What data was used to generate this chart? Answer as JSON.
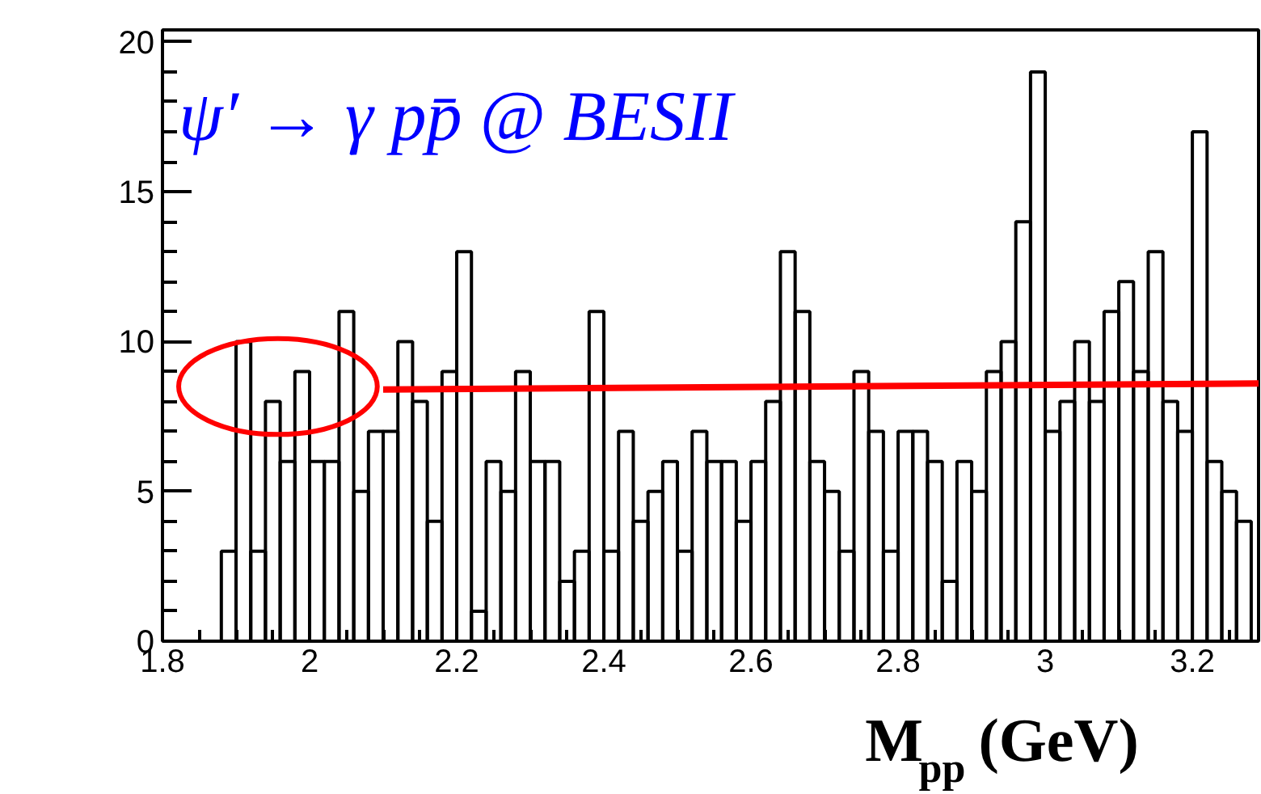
{
  "chart_data": {
    "type": "histogram",
    "title": "ψ′ → γ pp̄ @ BESII",
    "xlabel": "M$_{pp}$ (GeV)",
    "bins": [
      1.88,
      1.9,
      1.92,
      1.94,
      1.96,
      1.98,
      2.0,
      2.02,
      2.04,
      2.06,
      2.08,
      2.1,
      2.12,
      2.14,
      2.16,
      2.18,
      2.2,
      2.22,
      2.24,
      2.26,
      2.28,
      2.3,
      2.32,
      2.34,
      2.36,
      2.38,
      2.4,
      2.42,
      2.44,
      2.46,
      2.48,
      2.5,
      2.52,
      2.54,
      2.56,
      2.58,
      2.6,
      2.62,
      2.64,
      2.66,
      2.68,
      2.7,
      2.72,
      2.74,
      2.76,
      2.78,
      2.8,
      2.82,
      2.84,
      2.86,
      2.88,
      2.9,
      2.92,
      2.94,
      2.96,
      2.98,
      3.0,
      3.02,
      3.04,
      3.06,
      3.08,
      3.1,
      3.12,
      3.14,
      3.16,
      3.18,
      3.2,
      3.22,
      3.24,
      3.26,
      3.28
    ],
    "values": [
      3,
      10,
      3,
      8,
      6,
      9,
      6,
      6,
      11,
      5,
      7,
      7,
      10,
      8,
      4,
      9,
      13,
      1,
      6,
      5,
      9,
      6,
      6,
      2,
      3,
      11,
      3,
      7,
      4,
      5,
      6,
      3,
      7,
      6,
      6,
      4,
      6,
      8,
      13,
      11,
      6,
      5,
      3,
      9,
      7,
      3,
      7,
      7,
      6,
      2,
      6,
      5,
      9,
      10,
      14,
      19,
      7,
      8,
      10,
      8,
      11,
      12,
      9,
      13,
      8,
      7,
      17,
      6,
      5,
      4
    ],
    "color": "#000000",
    "series": [
      {
        "type": "line",
        "color": "#ff0000",
        "x": [
          2.1,
          3.29
        ],
        "values": [
          8.4,
          8.6
        ]
      }
    ],
    "xlim": [
      1.8,
      3.29
    ],
    "ylim": [
      0,
      20.4
    ],
    "xticks": [
      {
        "value": 1.8,
        "label": "1.8"
      },
      2,
      {
        "value": 2.2,
        "label": "2.2"
      },
      {
        "value": 2.4,
        "label": "2.4"
      },
      {
        "value": 2.6,
        "label": "2.6"
      },
      {
        "value": 2.8,
        "label": "2.8"
      },
      3,
      {
        "value": 3.2,
        "label": "3.2"
      }
    ],
    "yticks": [
      0,
      5,
      10,
      15,
      20
    ],
    "grid": false
  }
}
